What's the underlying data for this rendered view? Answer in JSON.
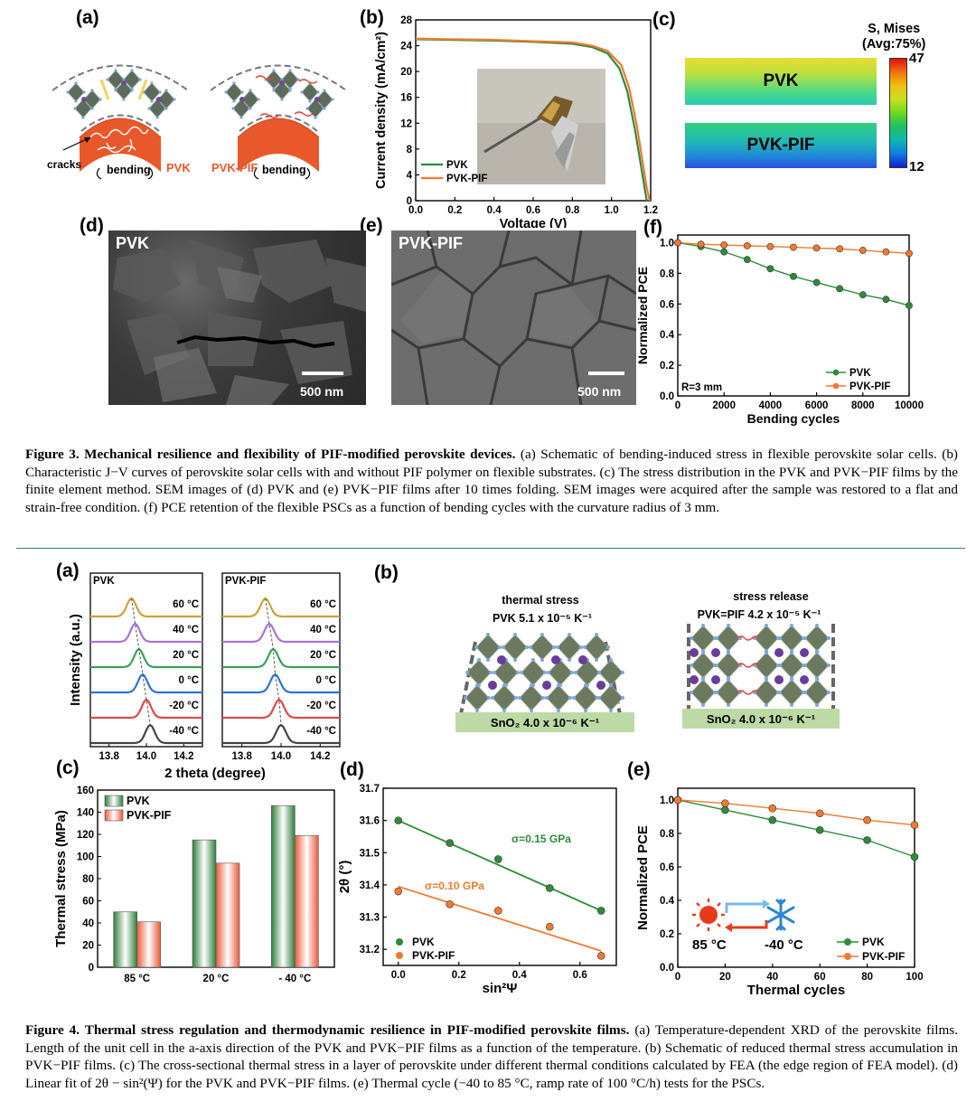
{
  "figure3": {
    "labels": [
      "(a)",
      "(b)",
      "(c)",
      "(d)",
      "(e)",
      "(f)"
    ],
    "panel_a": {
      "cracks": "cracks",
      "bending": "bending",
      "pvk": "PVK",
      "pvk_pif": "PVK-PIF"
    },
    "panel_c": {
      "title1": "S, Mises",
      "title2": "(Avg:75%)",
      "max": "47",
      "min": "12",
      "bar1": "PVK",
      "bar2": "PVK-PIF"
    },
    "panel_d": {
      "label": "PVK",
      "scale": "500 nm"
    },
    "panel_e": {
      "label": "PVK-PIF",
      "scale": "500 nm"
    },
    "caption_title": "Figure 3. Mechanical resilience and flexibility of PIF-modified perovskite devices.",
    "caption_body": " (a) Schematic of bending-induced stress in flexible perovskite solar cells. (b) Characteristic J−V curves of perovskite solar cells with and without PIF polymer on flexible substrates. (c) The stress distribution in the PVK and PVK−PIF films by the finite element method. SEM images of (d) PVK and (e) PVK−PIF films after 10 times folding. SEM images were acquired after the sample was restored to a flat and strain-free condition. (f) PCE retention of the flexible PSCs as a function of bending cycles with the curvature radius of 3 mm."
  },
  "figure4": {
    "labels": [
      "(a)",
      "(b)",
      "(c)",
      "(d)",
      "(e)"
    ],
    "panel_b": {
      "left_title": "thermal stress",
      "left_cte": "PVK  5.1 x 10⁻⁵ K⁻¹",
      "left_sub": "SnO₂  4.0 x 10⁻⁶ K⁻¹",
      "right_title": "stress release",
      "right_cte": "PVK=PIF    4.2 x 10⁻⁵ K⁻¹",
      "right_sub": "SnO₂  4.0 x 10⁻⁶ K⁻¹"
    },
    "panel_e_icons": {
      "hot": "85 °C",
      "cold": "-40 °C"
    },
    "caption_title": "Figure 4. Thermal stress regulation and thermodynamic resilience in PIF-modified perovskite films.",
    "caption_body": " (a) Temperature-dependent XRD of the perovskite films. Length of the unit cell in the a-axis direction of the PVK and PVK−PIF films as a function of the temperature. (b) Schematic of reduced thermal stress accumulation in PVK−PIF films. (c) The cross-sectional thermal stress in a layer of perovskite under different thermal conditions calculated by FEA (the edge region of FEA model). (d) Linear fit of 2θ − sin²(Ψ) for the PVK and PVK−PIF films. (e) Thermal cycle (−40 to 85 °C, ramp rate of 100 °C/h) tests for the PSCs."
  },
  "colors": {
    "pvk": "#2e8b3a",
    "pif": "#f07a30",
    "rule": "#3a7a74"
  },
  "chart_data": [
    {
      "id": "fig3b",
      "type": "line",
      "xlabel": "Voltage (V)",
      "ylabel": "Current density (mA/cm²)",
      "xlim": [
        0,
        1.2
      ],
      "ylim": [
        0,
        28
      ],
      "xticks": [
        "0.0",
        "0.2",
        "0.4",
        "0.6",
        "0.8",
        "1.0",
        "1.2"
      ],
      "yticks": [
        "0",
        "4",
        "8",
        "12",
        "16",
        "20",
        "24",
        "28"
      ],
      "legend": "bottom-left",
      "series": [
        {
          "name": "PVK",
          "x": [
            0,
            0.2,
            0.4,
            0.6,
            0.8,
            0.9,
            0.98,
            1.04,
            1.08,
            1.12,
            1.15,
            1.17,
            1.18
          ],
          "y": [
            25.0,
            24.9,
            24.8,
            24.6,
            24.3,
            23.8,
            22.8,
            20.5,
            17.0,
            11.0,
            5.5,
            1.8,
            0
          ]
        },
        {
          "name": "PVK-PIF",
          "x": [
            0,
            0.2,
            0.4,
            0.6,
            0.8,
            0.9,
            0.98,
            1.05,
            1.09,
            1.13,
            1.16,
            1.18,
            1.195
          ],
          "y": [
            25.1,
            25.0,
            24.9,
            24.7,
            24.5,
            24.0,
            23.2,
            21.0,
            17.5,
            11.5,
            5.8,
            2.0,
            0
          ]
        }
      ]
    },
    {
      "id": "fig3f",
      "type": "line",
      "xlabel": "Bending cycles",
      "ylabel": "Normalized PCE",
      "xlim": [
        0,
        10000
      ],
      "ylim": [
        0,
        1.05
      ],
      "xticks": [
        "0",
        "2000",
        "4000",
        "6000",
        "8000",
        "10000"
      ],
      "yticks": [
        "0.0",
        "0.2",
        "0.4",
        "0.6",
        "0.8",
        "1.0"
      ],
      "annotation": "R=3 mm",
      "legend": "bottom-right",
      "series": [
        {
          "name": "PVK",
          "x": [
            0,
            1000,
            2000,
            3000,
            4000,
            5000,
            6000,
            7000,
            8000,
            9000,
            10000
          ],
          "y": [
            1.0,
            0.975,
            0.94,
            0.89,
            0.83,
            0.78,
            0.74,
            0.7,
            0.66,
            0.63,
            0.59
          ]
        },
        {
          "name": "PVK-PIF",
          "x": [
            0,
            1000,
            2000,
            3000,
            4000,
            5000,
            6000,
            7000,
            8000,
            9000,
            10000
          ],
          "y": [
            1.0,
            0.99,
            0.985,
            0.98,
            0.975,
            0.97,
            0.965,
            0.96,
            0.95,
            0.94,
            0.93
          ]
        }
      ]
    },
    {
      "id": "fig4a",
      "type": "line",
      "xlabel": "2 theta (degree)",
      "ylabel": "Intensity (a.u.)",
      "xlim": [
        13.7,
        14.3
      ],
      "xticks": [
        "13.8",
        "14.0",
        "14.2"
      ],
      "subplots": [
        {
          "name": "PVK",
          "peaks": [
            {
              "temp": "60 °C",
              "center": 13.92
            },
            {
              "temp": "40 °C",
              "center": 13.94
            },
            {
              "temp": "20 °C",
              "center": 13.96
            },
            {
              "temp": "0 °C",
              "center": 13.98
            },
            {
              "temp": "-20 °C",
              "center": 14.0
            },
            {
              "temp": "-40 °C",
              "center": 14.02
            }
          ]
        },
        {
          "name": "PVK-PIF",
          "peaks": [
            {
              "temp": "60 °C",
              "center": 13.92
            },
            {
              "temp": "40 °C",
              "center": 13.94
            },
            {
              "temp": "20 °C",
              "center": 13.96
            },
            {
              "temp": "0 °C",
              "center": 13.97
            },
            {
              "temp": "-20 °C",
              "center": 13.99
            },
            {
              "temp": "-40 °C",
              "center": 14.0
            }
          ]
        }
      ]
    },
    {
      "id": "fig4c",
      "type": "bar",
      "ylabel": "Thermal stress (MPa)",
      "categories": [
        "85 °C",
        "20 °C",
        "- 40 °C"
      ],
      "ylim": [
        0,
        160
      ],
      "yticks": [
        "0",
        "20",
        "40",
        "60",
        "80",
        "100",
        "120",
        "140",
        "160"
      ],
      "legend": "top-left",
      "series": [
        {
          "name": "PVK",
          "values": [
            50,
            115,
            146
          ]
        },
        {
          "name": "PVK-PIF",
          "values": [
            41,
            94,
            119
          ]
        }
      ]
    },
    {
      "id": "fig4d",
      "type": "scatter",
      "xlabel": "sin²Ψ",
      "ylabel": "2θ (°)",
      "xlim": [
        -0.05,
        0.72
      ],
      "ylim": [
        31.15,
        31.7
      ],
      "xticks": [
        "0.0",
        "0.2",
        "0.4",
        "0.6"
      ],
      "yticks": [
        "31.2",
        "31.3",
        "31.4",
        "31.5",
        "31.6",
        "31.7"
      ],
      "legend": "bottom-left",
      "series": [
        {
          "name": "PVK",
          "x": [
            0,
            0.17,
            0.33,
            0.5,
            0.67
          ],
          "y": [
            31.6,
            31.53,
            31.48,
            31.39,
            31.32
          ],
          "fit": [
            31.6,
            31.32
          ],
          "label": "σ=0.15 GPa"
        },
        {
          "name": "PVK-PIF",
          "x": [
            0,
            0.17,
            0.33,
            0.5,
            0.67
          ],
          "y": [
            31.38,
            31.34,
            31.32,
            31.27,
            31.18
          ],
          "fit": [
            31.395,
            31.195
          ],
          "label": "σ=0.10 GPa"
        }
      ]
    },
    {
      "id": "fig4e",
      "type": "line",
      "xlabel": "Thermal cycles",
      "ylabel": "Normalized PCE",
      "xlim": [
        0,
        100
      ],
      "ylim": [
        0,
        1.07
      ],
      "xticks": [
        "0",
        "20",
        "40",
        "60",
        "80",
        "100"
      ],
      "yticks": [
        "0.0",
        "0.2",
        "0.4",
        "0.6",
        "0.8",
        "1.0"
      ],
      "legend": "bottom-right",
      "series": [
        {
          "name": "PVK",
          "x": [
            0,
            20,
            40,
            60,
            80,
            100
          ],
          "y": [
            1.0,
            0.94,
            0.88,
            0.82,
            0.76,
            0.66
          ]
        },
        {
          "name": "PVK-PIF",
          "x": [
            0,
            20,
            40,
            60,
            80,
            100
          ],
          "y": [
            1.0,
            0.98,
            0.95,
            0.92,
            0.88,
            0.85
          ]
        }
      ]
    }
  ]
}
